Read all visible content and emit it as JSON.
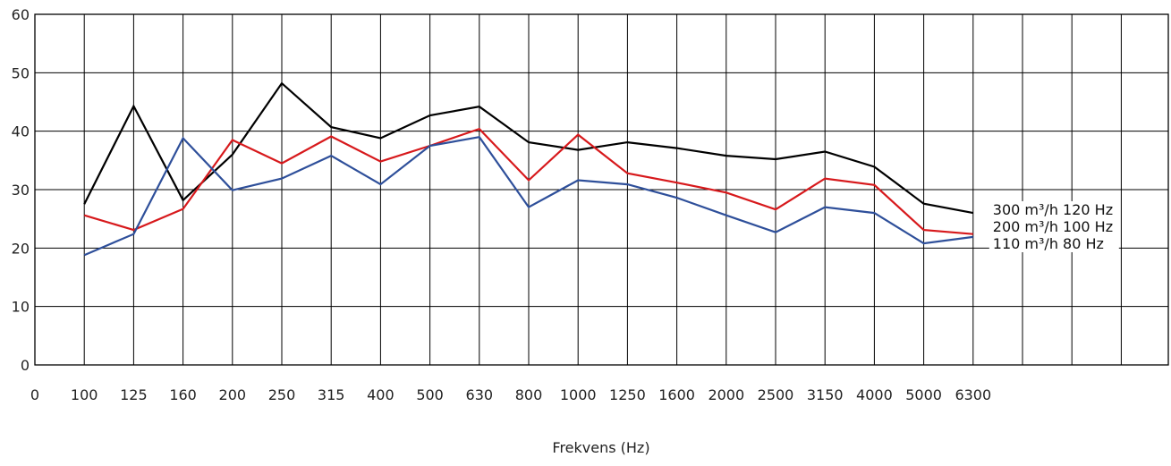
{
  "chart_data": {
    "type": "line",
    "title": "",
    "xlabel": "Frekvens (Hz)",
    "ylabel": "",
    "ylim": [
      0,
      60
    ],
    "yticks": [
      "0",
      "10",
      "20",
      "30",
      "40",
      "50",
      "60"
    ],
    "x_zero_label": "0",
    "categories": [
      "100",
      "125",
      "160",
      "200",
      "250",
      "315",
      "400",
      "500",
      "630",
      "800",
      "1000",
      "1250",
      "1600",
      "2000",
      "2500",
      "3150",
      "4000",
      "5000",
      "6300"
    ],
    "grid": true,
    "series": [
      {
        "name": "300 m³/h 120 Hz",
        "color": "#000000",
        "values": [
          27.5,
          44.3,
          28.2,
          36,
          48.2,
          40.7,
          38.8,
          42.7,
          44.2,
          38.1,
          36.8,
          38.1,
          37.1,
          35.8,
          35.2,
          36.5,
          33.9,
          27.6,
          26
        ]
      },
      {
        "name": "200 m³/h 100 Hz",
        "color": "#d7191c",
        "values": [
          25.6,
          23.1,
          26.7,
          38.5,
          34.5,
          39.1,
          34.8,
          37.5,
          40.4,
          31.6,
          39.4,
          32.8,
          31.2,
          29.5,
          26.6,
          31.9,
          30.8,
          23.1,
          22.4
        ]
      },
      {
        "name": "110 m³/h 80 Hz",
        "color": "#2e4f9a",
        "values": [
          18.8,
          22.4,
          38.8,
          29.9,
          31.9,
          35.8,
          30.9,
          37.5,
          39,
          27,
          31.6,
          30.9,
          28.6,
          25.6,
          22.7,
          27,
          26,
          20.8,
          21.9
        ]
      }
    ]
  }
}
